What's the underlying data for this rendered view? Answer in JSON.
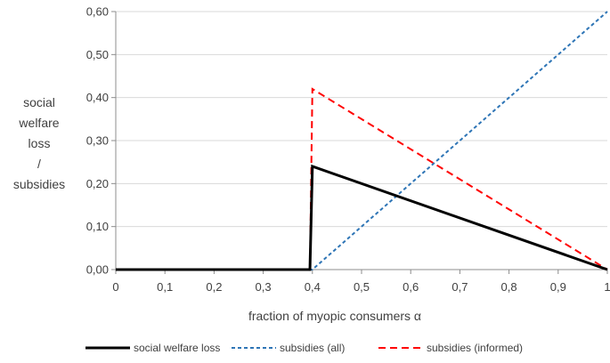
{
  "chart_data": {
    "type": "line",
    "title": "",
    "xlabel": "fraction of myopic consumers α",
    "ylabel_lines": [
      "social",
      "welfare",
      "loss",
      "/",
      "subsidies"
    ],
    "xlim": [
      0,
      1
    ],
    "ylim": [
      0,
      0.6
    ],
    "x_ticks": [
      0,
      0.1,
      0.2,
      0.3,
      0.4,
      0.5,
      0.6,
      0.7,
      0.8,
      0.9,
      1
    ],
    "x_tick_labels": [
      "0",
      "0,1",
      "0,2",
      "0,3",
      "0,4",
      "0,5",
      "0,6",
      "0,7",
      "0,8",
      "0,9",
      "1"
    ],
    "y_ticks": [
      0,
      0.1,
      0.2,
      0.3,
      0.4,
      0.5,
      0.6
    ],
    "y_tick_labels": [
      "0,00",
      "0,10",
      "0,20",
      "0,30",
      "0,40",
      "0,50",
      "0,60"
    ],
    "grid": "horizontal",
    "legend_position": "bottom",
    "series": [
      {
        "name": "social welfare loss",
        "color": "#000000",
        "style": "solid",
        "points": [
          [
            0,
            0
          ],
          [
            0.395,
            0
          ],
          [
            0.4,
            0.24
          ],
          [
            1.0,
            0
          ]
        ]
      },
      {
        "name": "subsidies (all)",
        "color": "#2E75B6",
        "style": "dotted",
        "points": [
          [
            0,
            0
          ],
          [
            0.4,
            0
          ],
          [
            1.0,
            0.6
          ]
        ]
      },
      {
        "name": "subsidies (informed)",
        "color": "#FF0000",
        "style": "dashed",
        "points": [
          [
            0,
            0
          ],
          [
            0.395,
            0
          ],
          [
            0.4,
            0.42
          ],
          [
            1.0,
            0
          ]
        ]
      }
    ]
  }
}
